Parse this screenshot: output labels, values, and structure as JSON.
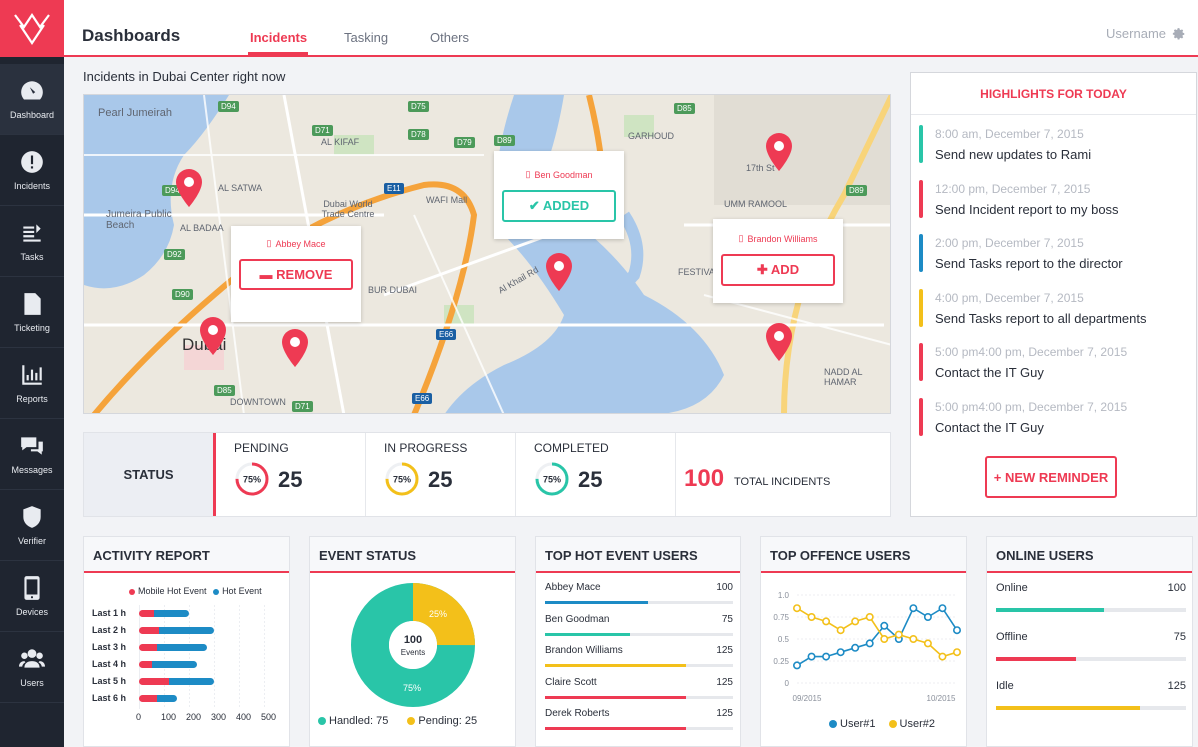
{
  "header": {
    "title": "Dashboards",
    "tabs": [
      "Incidents",
      "Tasking",
      "Others"
    ],
    "username": "Username"
  },
  "sidebar": {
    "items": [
      "Dashboard",
      "Incidents",
      "Tasks",
      "Ticketing",
      "Reports",
      "Messages",
      "Verifier",
      "Devices",
      "Users"
    ]
  },
  "map": {
    "title": "Incidents in Dubai Center right now",
    "places": [
      "Pearl Jumeirah",
      "Jumeira Public Beach",
      "Dubai World Trade Centre",
      "WAFI Mall",
      "Dubai",
      "Al Khail Rd",
      "AL KIFAF",
      "AL SATWA",
      "GARHOUD",
      "UMM RAMOOL",
      "AL BADAA",
      "BUR DUBAI",
      "DOWNTOWN",
      "17th St",
      "FESTIVAL",
      "NADD AL HAMAR"
    ],
    "roads": [
      "D94",
      "D71",
      "D78",
      "D79",
      "D89",
      "D75",
      "E11",
      "D94",
      "D92",
      "D90",
      "E66",
      "D85",
      "D71",
      "E66",
      "D89",
      "D85"
    ],
    "popups": [
      {
        "name": "Abbey Mace",
        "action": "REMOVE"
      },
      {
        "name": "Ben Goodman",
        "action": "ADDED"
      },
      {
        "name": "Brandon Williams",
        "action": "ADD"
      }
    ]
  },
  "status": {
    "label": "STATUS",
    "items": [
      {
        "title": "PENDING",
        "pct": "75%",
        "count": "25",
        "color": "#ee3a53"
      },
      {
        "title": "IN PROGRESS",
        "pct": "75%",
        "count": "25",
        "color": "#f3c01a"
      },
      {
        "title": "COMPLETED",
        "pct": "75%",
        "count": "25",
        "color": "#29c5a8"
      }
    ],
    "total": "100",
    "total_label": "TOTAL INCIDENTS"
  },
  "highlights": {
    "title": "HIGHLIGHTS FOR TODAY",
    "items": [
      {
        "time": "8:00 am, December 7, 2015",
        "text": "Send new updates to Rami",
        "color": "#29c5a8"
      },
      {
        "time": "12:00 pm, December 7, 2015",
        "text": "Send Incident report to my boss",
        "color": "#ee3a53"
      },
      {
        "time": "2:00 pm, December 7, 2015",
        "text": "Send Tasks report to the director",
        "color": "#1d8bc5"
      },
      {
        "time": "4:00 pm, December 7, 2015",
        "text": "Send Tasks report to all departments",
        "color": "#f3c01a"
      },
      {
        "time": "5:00 pm4:00 pm, December 7, 2015",
        "text": "Contact the IT Guy",
        "color": "#ee3a53"
      },
      {
        "time": "5:00 pm4:00 pm, December 7, 2015",
        "text": "Contact the IT Guy",
        "color": "#ee3a53"
      }
    ],
    "button": "+ NEW REMINDER"
  },
  "activity": {
    "title": "ACTIVITY REPORT",
    "legend": [
      "Mobile Hot Event",
      "Hot Event"
    ],
    "rows": [
      {
        "label": "Last 1 h",
        "mobile": 60,
        "hot": 140
      },
      {
        "label": "Last 2 h",
        "mobile": 80,
        "hot": 220
      },
      {
        "label": "Last 3 h",
        "mobile": 70,
        "hot": 200
      },
      {
        "label": "Last 4 h",
        "mobile": 50,
        "hot": 180
      },
      {
        "label": "Last 5 h",
        "mobile": 120,
        "hot": 180
      },
      {
        "label": "Last 6 h",
        "mobile": 70,
        "hot": 80
      }
    ],
    "ticks": [
      "0",
      "100",
      "200",
      "300",
      "400",
      "500"
    ]
  },
  "event_status": {
    "title": "EVENT STATUS",
    "center_value": "100",
    "center_label": "Events",
    "handled_pct": "75%",
    "pending_pct": "25%",
    "legend": [
      "Handled: 75",
      "Pending: 25"
    ]
  },
  "hot_users": {
    "title": "TOP HOT EVENT USERS",
    "users": [
      {
        "name": "Abbey Mace",
        "value": "100",
        "color": "#1d8bc5",
        "pct": 0.55
      },
      {
        "name": "Ben Goodman",
        "value": "75",
        "color": "#29c5a8",
        "pct": 0.45
      },
      {
        "name": "Brandon Williams",
        "value": "125",
        "color": "#f3c01a",
        "pct": 0.75
      },
      {
        "name": "Claire Scott",
        "value": "125",
        "color": "#ee3a53",
        "pct": 0.75
      },
      {
        "name": "Derek Roberts",
        "value": "125",
        "color": "#ee3a53",
        "pct": 0.75
      }
    ]
  },
  "offence": {
    "title": "TOP OFFENCE USERS",
    "y_ticks": [
      "1.0",
      "0.75",
      "0.5",
      "0.25",
      "0"
    ],
    "x_ticks": [
      "09/2015",
      "10/2015"
    ],
    "legend": [
      "User#1",
      "User#2"
    ]
  },
  "chart_data": {
    "type": "line",
    "x": [
      1,
      2,
      3,
      4,
      5,
      6,
      7,
      8,
      9,
      10,
      11,
      12
    ],
    "series": [
      {
        "name": "User#1",
        "values": [
          0.2,
          0.3,
          0.3,
          0.35,
          0.4,
          0.45,
          0.65,
          0.5,
          0.85,
          0.75,
          0.85,
          0.6
        ]
      },
      {
        "name": "User#2",
        "values": [
          0.85,
          0.75,
          0.7,
          0.6,
          0.7,
          0.75,
          0.5,
          0.55,
          0.5,
          0.45,
          0.3,
          0.35
        ]
      }
    ],
    "ylim": [
      0,
      1
    ]
  },
  "online": {
    "title": "ONLINE USERS",
    "items": [
      {
        "name": "Online",
        "value": "100",
        "color": "#29c5a8",
        "pct": 0.57
      },
      {
        "name": "Offline",
        "value": "75",
        "color": "#ee3a53",
        "pct": 0.42
      },
      {
        "name": "Idle",
        "value": "125",
        "color": "#f3c01a",
        "pct": 0.76
      }
    ]
  }
}
